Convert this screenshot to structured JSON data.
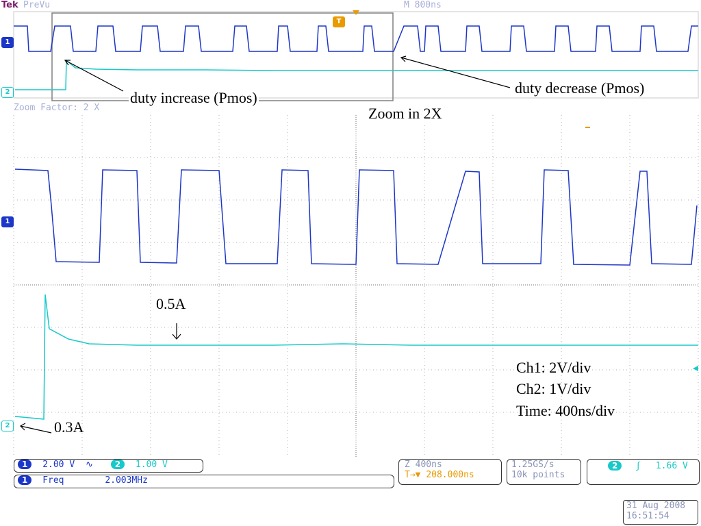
{
  "header": {
    "brand": "Tek",
    "mode": "PreVu",
    "timebase": "M 800ns",
    "zoom_factor": "Zoom Factor: 2 X"
  },
  "annotations": {
    "duty_increase": "duty increase (Pmos)",
    "duty_decrease": "duty decrease (Pmos)",
    "zoom_in": "Zoom in 2X",
    "current_high": "0.5A",
    "current_low": "0.3A",
    "ch1_scale": "Ch1: 2V/div",
    "ch2_scale": "Ch2: 1V/div",
    "time_scale": "Time: 400ns/div"
  },
  "markers": {
    "ch1": "1",
    "ch2": "2",
    "trigger": "T"
  },
  "readouts": {
    "ch1_num": "1",
    "ch1_volts": "2.00 V",
    "ch1_coupling": "∿",
    "ch2_num": "2",
    "ch2_volts": "1.00 V",
    "meas_num": "1",
    "meas_label": "Freq",
    "meas_value": "2.003MHz",
    "zoom_time": "Z 400ns",
    "trigger_pos": "208.000ns",
    "trigger_symbol": "T→▼",
    "sample_rate": "1.25GS/s",
    "record_length": "10k points",
    "trig_src": "2",
    "trig_slope": "ʃ",
    "trig_level": "1.66 V"
  },
  "datetime": {
    "date": "31 Aug 2008",
    "time": "16:51:54"
  },
  "colors": {
    "ch1": "#1c36c8",
    "ch2": "#18c9c9",
    "accent": "#e89a00",
    "dim": "#a7b0d8"
  }
}
